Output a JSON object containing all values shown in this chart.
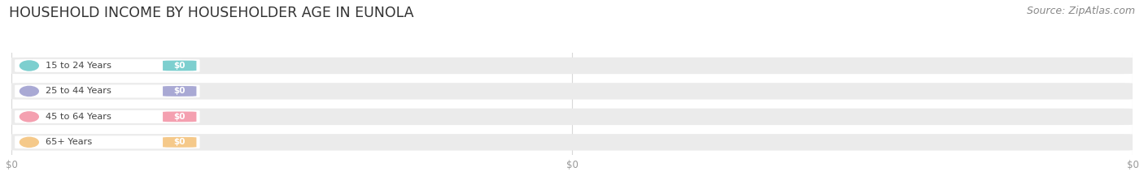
{
  "title": "HOUSEHOLD INCOME BY HOUSEHOLDER AGE IN EUNOLA",
  "source": "Source: ZipAtlas.com",
  "categories": [
    "15 to 24 Years",
    "25 to 44 Years",
    "45 to 64 Years",
    "65+ Years"
  ],
  "values": [
    0,
    0,
    0,
    0
  ],
  "bar_colors": [
    "#7dcfcf",
    "#a9a9d4",
    "#f4a0b0",
    "#f5c98a"
  ],
  "background_color": "#ffffff",
  "title_fontsize": 12.5,
  "source_fontsize": 9,
  "grid_color": "#d8d8d8",
  "bar_bg_color": "#ebebeb",
  "tick_label_color": "#999999"
}
